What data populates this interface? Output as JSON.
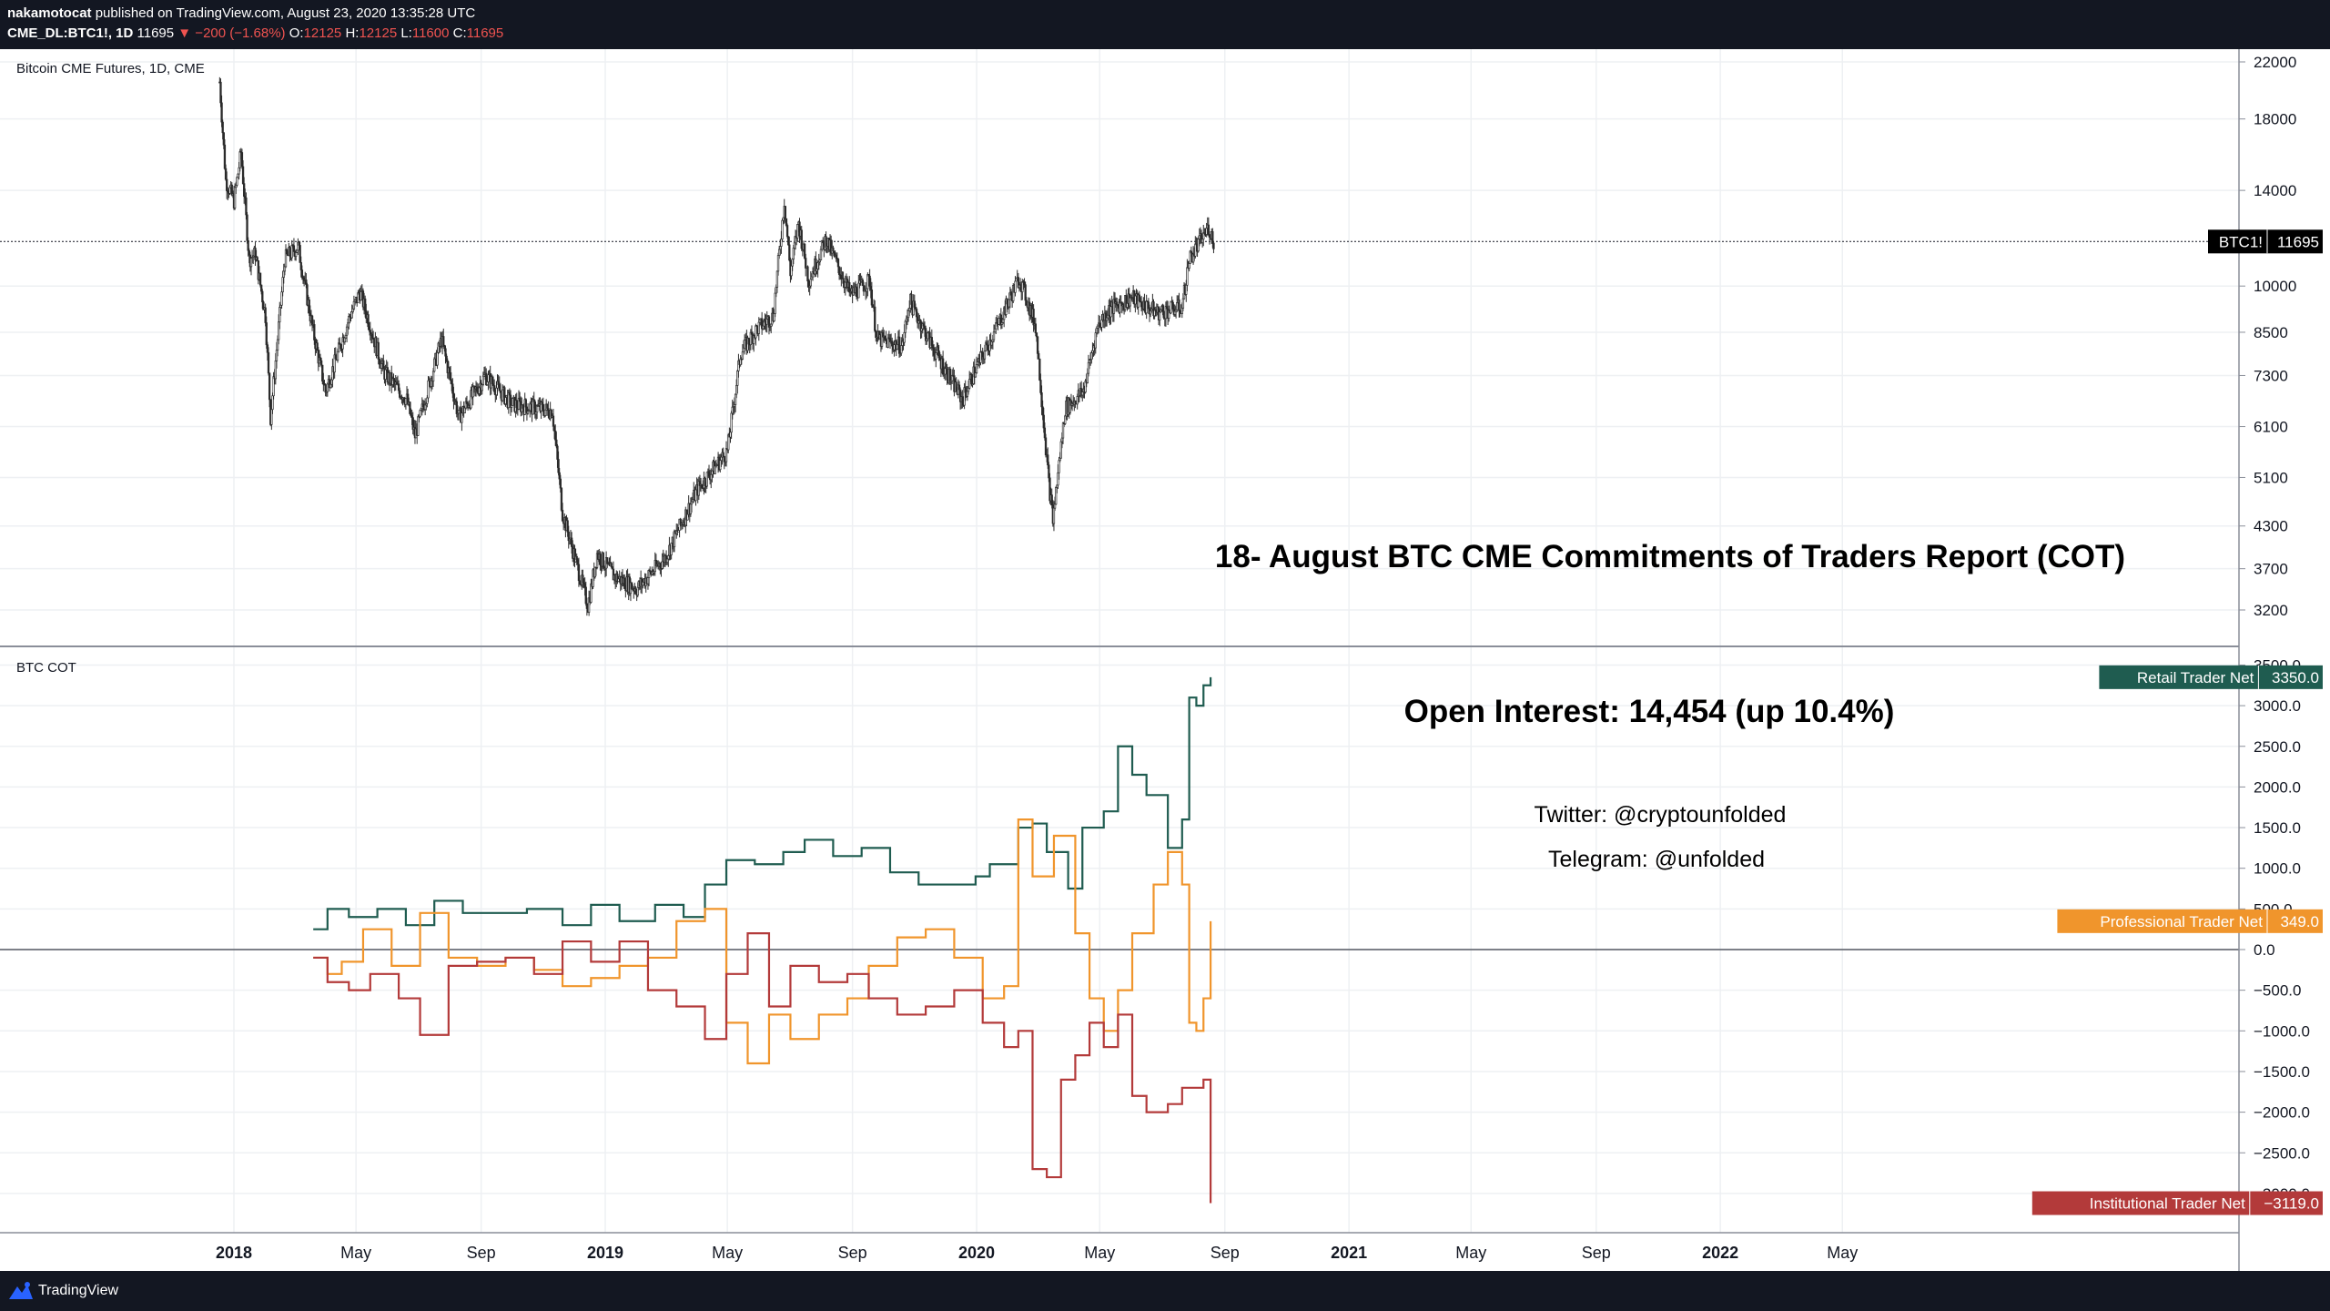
{
  "header": {
    "author": "nakamotocat",
    "published": "published on TradingView.com, August 23, 2020 13:35:28 UTC",
    "symbol": "CME_DL:BTC1!, 1D",
    "last": "11695",
    "change": "▼ −200 (−1.68%)",
    "o_label": "O:",
    "o_value": "12125",
    "h_label": "H:",
    "h_value": "12125",
    "l_label": "L:",
    "l_value": "11600",
    "c_label": "C:",
    "c_value": "11695"
  },
  "footer": {
    "brand": "TradingView",
    "logo_icon": "tradingview-logo-icon"
  },
  "chart_data": [
    {
      "type": "candlestick",
      "title": "Bitcoin CME Futures, 1D, CME",
      "y_scale": "log",
      "ylim": [
        2900,
        23000
      ],
      "yticks": [
        3200,
        3700,
        4300,
        5100,
        6100,
        7300,
        8500,
        10000,
        14000,
        18000,
        22000
      ],
      "last_price": 11695,
      "last_price_label": "BTC1!",
      "annotation": "18- August BTC CME Commitments of Traders Report (COT)",
      "series": [
        {
          "x": "2017-12-18",
          "y": 20500
        },
        {
          "x": "2017-12-24",
          "y": 14500
        },
        {
          "x": "2018-01-01",
          "y": 13500
        },
        {
          "x": "2018-01-08",
          "y": 16000
        },
        {
          "x": "2018-01-16",
          "y": 11000
        },
        {
          "x": "2018-01-22",
          "y": 11200
        },
        {
          "x": "2018-02-01",
          "y": 9000
        },
        {
          "x": "2018-02-06",
          "y": 6300
        },
        {
          "x": "2018-02-20",
          "y": 11000
        },
        {
          "x": "2018-03-05",
          "y": 11500
        },
        {
          "x": "2018-03-20",
          "y": 8500
        },
        {
          "x": "2018-04-01",
          "y": 6900
        },
        {
          "x": "2018-04-25",
          "y": 9000
        },
        {
          "x": "2018-05-05",
          "y": 9800
        },
        {
          "x": "2018-05-28",
          "y": 7400
        },
        {
          "x": "2018-06-20",
          "y": 6700
        },
        {
          "x": "2018-06-28",
          "y": 5900
        },
        {
          "x": "2018-07-24",
          "y": 8300
        },
        {
          "x": "2018-08-10",
          "y": 6300
        },
        {
          "x": "2018-09-05",
          "y": 7300
        },
        {
          "x": "2018-10-01",
          "y": 6600
        },
        {
          "x": "2018-11-10",
          "y": 6450
        },
        {
          "x": "2018-11-20",
          "y": 4500
        },
        {
          "x": "2018-12-01",
          "y": 3900
        },
        {
          "x": "2018-12-15",
          "y": 3250
        },
        {
          "x": "2018-12-24",
          "y": 3900
        },
        {
          "x": "2019-01-10",
          "y": 3600
        },
        {
          "x": "2019-02-01",
          "y": 3450
        },
        {
          "x": "2019-03-01",
          "y": 3850
        },
        {
          "x": "2019-04-02",
          "y": 4900
        },
        {
          "x": "2019-05-01",
          "y": 5600
        },
        {
          "x": "2019-05-14",
          "y": 7900
        },
        {
          "x": "2019-05-30",
          "y": 8600
        },
        {
          "x": "2019-06-15",
          "y": 9000
        },
        {
          "x": "2019-06-26",
          "y": 13500
        },
        {
          "x": "2019-07-02",
          "y": 10500
        },
        {
          "x": "2019-07-10",
          "y": 12500
        },
        {
          "x": "2019-07-20",
          "y": 10200
        },
        {
          "x": "2019-08-06",
          "y": 11800
        },
        {
          "x": "2019-08-30",
          "y": 9700
        },
        {
          "x": "2019-09-18",
          "y": 10200
        },
        {
          "x": "2019-09-25",
          "y": 8300
        },
        {
          "x": "2019-10-20",
          "y": 8100
        },
        {
          "x": "2019-10-27",
          "y": 9500
        },
        {
          "x": "2019-11-20",
          "y": 8000
        },
        {
          "x": "2019-12-18",
          "y": 6700
        },
        {
          "x": "2019-12-28",
          "y": 7300
        },
        {
          "x": "2020-01-20",
          "y": 8600
        },
        {
          "x": "2020-02-12",
          "y": 10300
        },
        {
          "x": "2020-02-28",
          "y": 8700
        },
        {
          "x": "2020-03-12",
          "y": 5000
        },
        {
          "x": "2020-03-16",
          "y": 4400
        },
        {
          "x": "2020-03-28",
          "y": 6500
        },
        {
          "x": "2020-04-15",
          "y": 6900
        },
        {
          "x": "2020-04-29",
          "y": 8700
        },
        {
          "x": "2020-05-10",
          "y": 9200
        },
        {
          "x": "2020-06-01",
          "y": 9600
        },
        {
          "x": "2020-06-27",
          "y": 9100
        },
        {
          "x": "2020-07-21",
          "y": 9300
        },
        {
          "x": "2020-07-28",
          "y": 11000
        },
        {
          "x": "2020-08-08",
          "y": 11700
        },
        {
          "x": "2020-08-16",
          "y": 12300
        },
        {
          "x": "2020-08-21",
          "y": 11695
        }
      ]
    },
    {
      "type": "line",
      "title": "BTC COT",
      "ylim": [
        -3600,
        3600
      ],
      "yticks": [
        -2500,
        -2000,
        -1500,
        -1000,
        -500,
        0,
        1000,
        1500,
        2000,
        2500,
        3000
      ],
      "yticks_partial": [
        3500,
        500,
        -3000
      ],
      "annotations": [
        "Open Interest: 14,454 (up 10.4%)",
        "Twitter: @cryptounfolded",
        "Telegram: @unfolded"
      ],
      "x_ticks": [
        "2018",
        "May",
        "Sep",
        "2019",
        "May",
        "Sep",
        "2020",
        "May",
        "Sep",
        "2021",
        "May",
        "Sep",
        "2022",
        "May"
      ],
      "x_tick_dates": [
        "2018-01-01",
        "2018-05-01",
        "2018-09-01",
        "2019-01-01",
        "2019-05-01",
        "2019-09-01",
        "2020-01-01",
        "2020-05-01",
        "2020-09-01",
        "2021-01-01",
        "2021-05-01",
        "2021-09-01",
        "2022-01-01",
        "2022-05-01"
      ],
      "series": [
        {
          "name": "Retail Trader Net",
          "color": "#1f5c50",
          "last": "3350.0",
          "points": [
            {
              "x": "2018-03-20",
              "y": 250
            },
            {
              "x": "2018-04-03",
              "y": 500
            },
            {
              "x": "2018-04-24",
              "y": 400
            },
            {
              "x": "2018-05-22",
              "y": 500
            },
            {
              "x": "2018-06-19",
              "y": 300
            },
            {
              "x": "2018-07-17",
              "y": 600
            },
            {
              "x": "2018-08-14",
              "y": 450
            },
            {
              "x": "2018-09-11",
              "y": 450
            },
            {
              "x": "2018-10-16",
              "y": 500
            },
            {
              "x": "2018-11-20",
              "y": 300
            },
            {
              "x": "2018-12-18",
              "y": 550
            },
            {
              "x": "2019-01-15",
              "y": 350
            },
            {
              "x": "2019-02-19",
              "y": 550
            },
            {
              "x": "2019-03-19",
              "y": 400
            },
            {
              "x": "2019-04-09",
              "y": 800
            },
            {
              "x": "2019-04-30",
              "y": 1100
            },
            {
              "x": "2019-05-28",
              "y": 1050
            },
            {
              "x": "2019-06-25",
              "y": 1200
            },
            {
              "x": "2019-07-16",
              "y": 1350
            },
            {
              "x": "2019-08-13",
              "y": 1150
            },
            {
              "x": "2019-09-10",
              "y": 1250
            },
            {
              "x": "2019-10-08",
              "y": 950
            },
            {
              "x": "2019-11-05",
              "y": 800
            },
            {
              "x": "2019-12-03",
              "y": 800
            },
            {
              "x": "2019-12-31",
              "y": 900
            },
            {
              "x": "2020-01-14",
              "y": 1050
            },
            {
              "x": "2020-02-11",
              "y": 1500
            },
            {
              "x": "2020-02-25",
              "y": 1550
            },
            {
              "x": "2020-03-10",
              "y": 1200
            },
            {
              "x": "2020-03-31",
              "y": 750
            },
            {
              "x": "2020-04-14",
              "y": 1500
            },
            {
              "x": "2020-05-05",
              "y": 1700
            },
            {
              "x": "2020-05-19",
              "y": 2500
            },
            {
              "x": "2020-06-02",
              "y": 2150
            },
            {
              "x": "2020-06-16",
              "y": 1900
            },
            {
              "x": "2020-07-07",
              "y": 1250
            },
            {
              "x": "2020-07-21",
              "y": 1600
            },
            {
              "x": "2020-07-28",
              "y": 3100
            },
            {
              "x": "2020-08-04",
              "y": 3000
            },
            {
              "x": "2020-08-11",
              "y": 3250
            },
            {
              "x": "2020-08-18",
              "y": 3350
            }
          ]
        },
        {
          "name": "Professional Trader Net",
          "color": "#f0952c",
          "last": "349.0",
          "points": [
            {
              "x": "2018-03-20",
              "y": -100
            },
            {
              "x": "2018-04-03",
              "y": -300
            },
            {
              "x": "2018-04-17",
              "y": -150
            },
            {
              "x": "2018-05-08",
              "y": 250
            },
            {
              "x": "2018-06-05",
              "y": -200
            },
            {
              "x": "2018-07-03",
              "y": 450
            },
            {
              "x": "2018-07-31",
              "y": -100
            },
            {
              "x": "2018-08-28",
              "y": -200
            },
            {
              "x": "2018-09-25",
              "y": -100
            },
            {
              "x": "2018-10-23",
              "y": -250
            },
            {
              "x": "2018-11-20",
              "y": -450
            },
            {
              "x": "2018-12-18",
              "y": -350
            },
            {
              "x": "2019-01-15",
              "y": -200
            },
            {
              "x": "2019-02-12",
              "y": -100
            },
            {
              "x": "2019-03-12",
              "y": 350
            },
            {
              "x": "2019-04-09",
              "y": 500
            },
            {
              "x": "2019-04-30",
              "y": -900
            },
            {
              "x": "2019-05-21",
              "y": -1400
            },
            {
              "x": "2019-06-11",
              "y": -800
            },
            {
              "x": "2019-07-02",
              "y": -1100
            },
            {
              "x": "2019-07-30",
              "y": -800
            },
            {
              "x": "2019-08-27",
              "y": -600
            },
            {
              "x": "2019-09-17",
              "y": -200
            },
            {
              "x": "2019-10-15",
              "y": 150
            },
            {
              "x": "2019-11-12",
              "y": 250
            },
            {
              "x": "2019-12-10",
              "y": -100
            },
            {
              "x": "2020-01-07",
              "y": -600
            },
            {
              "x": "2020-01-28",
              "y": -450
            },
            {
              "x": "2020-02-11",
              "y": 1600
            },
            {
              "x": "2020-02-25",
              "y": 900
            },
            {
              "x": "2020-03-17",
              "y": 1400
            },
            {
              "x": "2020-04-07",
              "y": 200
            },
            {
              "x": "2020-04-21",
              "y": -600
            },
            {
              "x": "2020-05-05",
              "y": -1000
            },
            {
              "x": "2020-05-19",
              "y": -500
            },
            {
              "x": "2020-06-02",
              "y": 200
            },
            {
              "x": "2020-06-23",
              "y": 800
            },
            {
              "x": "2020-07-07",
              "y": 1200
            },
            {
              "x": "2020-07-21",
              "y": 800
            },
            {
              "x": "2020-07-28",
              "y": -900
            },
            {
              "x": "2020-08-04",
              "y": -1000
            },
            {
              "x": "2020-08-11",
              "y": -600
            },
            {
              "x": "2020-08-18",
              "y": 349
            }
          ]
        },
        {
          "name": "Institutional Trader Net",
          "color": "#b33a3a",
          "last": "−3119.0",
          "points": [
            {
              "x": "2018-03-20",
              "y": -100
            },
            {
              "x": "2018-04-03",
              "y": -400
            },
            {
              "x": "2018-04-24",
              "y": -500
            },
            {
              "x": "2018-05-15",
              "y": -300
            },
            {
              "x": "2018-06-12",
              "y": -600
            },
            {
              "x": "2018-07-03",
              "y": -1050
            },
            {
              "x": "2018-07-31",
              "y": -200
            },
            {
              "x": "2018-08-28",
              "y": -150
            },
            {
              "x": "2018-09-25",
              "y": -100
            },
            {
              "x": "2018-10-23",
              "y": -300
            },
            {
              "x": "2018-11-20",
              "y": 100
            },
            {
              "x": "2018-12-18",
              "y": -150
            },
            {
              "x": "2019-01-15",
              "y": 100
            },
            {
              "x": "2019-02-12",
              "y": -500
            },
            {
              "x": "2019-03-12",
              "y": -700
            },
            {
              "x": "2019-04-09",
              "y": -1100
            },
            {
              "x": "2019-04-30",
              "y": -300
            },
            {
              "x": "2019-05-21",
              "y": 200
            },
            {
              "x": "2019-06-11",
              "y": -700
            },
            {
              "x": "2019-07-02",
              "y": -200
            },
            {
              "x": "2019-07-30",
              "y": -400
            },
            {
              "x": "2019-08-27",
              "y": -300
            },
            {
              "x": "2019-09-17",
              "y": -600
            },
            {
              "x": "2019-10-15",
              "y": -800
            },
            {
              "x": "2019-11-12",
              "y": -700
            },
            {
              "x": "2019-12-10",
              "y": -500
            },
            {
              "x": "2020-01-07",
              "y": -900
            },
            {
              "x": "2020-01-28",
              "y": -1200
            },
            {
              "x": "2020-02-11",
              "y": -1000
            },
            {
              "x": "2020-02-25",
              "y": -2700
            },
            {
              "x": "2020-03-10",
              "y": -2800
            },
            {
              "x": "2020-03-24",
              "y": -1600
            },
            {
              "x": "2020-04-07",
              "y": -1300
            },
            {
              "x": "2020-04-21",
              "y": -900
            },
            {
              "x": "2020-05-05",
              "y": -1200
            },
            {
              "x": "2020-05-19",
              "y": -800
            },
            {
              "x": "2020-06-02",
              "y": -1800
            },
            {
              "x": "2020-06-16",
              "y": -2000
            },
            {
              "x": "2020-07-07",
              "y": -1900
            },
            {
              "x": "2020-07-21",
              "y": -1700
            },
            {
              "x": "2020-08-11",
              "y": -1600
            },
            {
              "x": "2020-08-18",
              "y": -3119
            }
          ]
        }
      ]
    }
  ]
}
